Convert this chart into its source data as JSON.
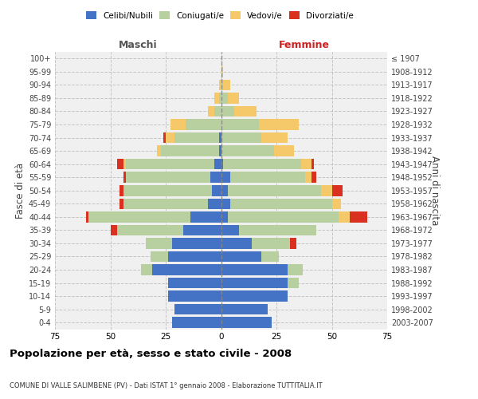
{
  "age_groups_bottom_to_top": [
    "0-4",
    "5-9",
    "10-14",
    "15-19",
    "20-24",
    "25-29",
    "30-34",
    "35-39",
    "40-44",
    "45-49",
    "50-54",
    "55-59",
    "60-64",
    "65-69",
    "70-74",
    "75-79",
    "80-84",
    "85-89",
    "90-94",
    "95-99",
    "100+"
  ],
  "birth_years_bottom_to_top": [
    "2003-2007",
    "1998-2002",
    "1993-1997",
    "1988-1992",
    "1983-1987",
    "1978-1982",
    "1973-1977",
    "1968-1972",
    "1963-1967",
    "1958-1962",
    "1953-1957",
    "1948-1952",
    "1943-1947",
    "1938-1942",
    "1933-1937",
    "1928-1932",
    "1923-1927",
    "1918-1922",
    "1913-1917",
    "1908-1912",
    "≤ 1907"
  ],
  "colors": {
    "celibi": "#4472c4",
    "coniugati": "#b8cfa0",
    "vedovi": "#f5c96a",
    "divorziati": "#d93020"
  },
  "male_bottom_to_top": {
    "celibi": [
      22,
      21,
      24,
      24,
      31,
      24,
      22,
      17,
      14,
      6,
      4,
      5,
      3,
      1,
      1,
      0,
      0,
      0,
      0,
      0,
      0
    ],
    "coniugati": [
      0,
      0,
      0,
      0,
      5,
      8,
      12,
      30,
      46,
      38,
      40,
      38,
      40,
      26,
      20,
      16,
      3,
      1,
      0,
      0,
      0
    ],
    "vedovi": [
      0,
      0,
      0,
      0,
      0,
      0,
      0,
      0,
      0,
      0,
      0,
      0,
      1,
      2,
      4,
      7,
      3,
      2,
      1,
      0,
      0
    ],
    "divorziati": [
      0,
      0,
      0,
      0,
      0,
      0,
      0,
      3,
      1,
      2,
      2,
      1,
      3,
      0,
      1,
      0,
      0,
      0,
      0,
      0,
      0
    ]
  },
  "female_bottom_to_top": {
    "nubili": [
      23,
      21,
      30,
      30,
      30,
      18,
      14,
      8,
      3,
      4,
      3,
      4,
      1,
      0,
      0,
      0,
      0,
      0,
      0,
      0,
      0
    ],
    "coniugati": [
      0,
      0,
      0,
      5,
      7,
      8,
      17,
      35,
      50,
      46,
      42,
      34,
      35,
      24,
      18,
      17,
      6,
      3,
      1,
      0,
      0
    ],
    "vedovi": [
      0,
      0,
      0,
      0,
      0,
      0,
      0,
      0,
      5,
      4,
      5,
      3,
      5,
      9,
      12,
      18,
      10,
      5,
      3,
      1,
      0
    ],
    "divorziati": [
      0,
      0,
      0,
      0,
      0,
      0,
      3,
      0,
      8,
      0,
      5,
      2,
      1,
      0,
      0,
      0,
      0,
      0,
      0,
      0,
      0
    ]
  },
  "title": "Popolazione per età, sesso e stato civile - 2008",
  "subtitle": "COMUNE DI VALLE SALIMBENE (PV) - Dati ISTAT 1° gennaio 2008 - Elaborazione TUTTITALIA.IT",
  "xlabel_left": "Maschi",
  "xlabel_right": "Femmine",
  "ylabel_left": "Fasce di età",
  "ylabel_right": "Anni di nascita",
  "xlim": 75,
  "bg_color": "#f0f0f0",
  "grid_color": "#bbbbbb"
}
